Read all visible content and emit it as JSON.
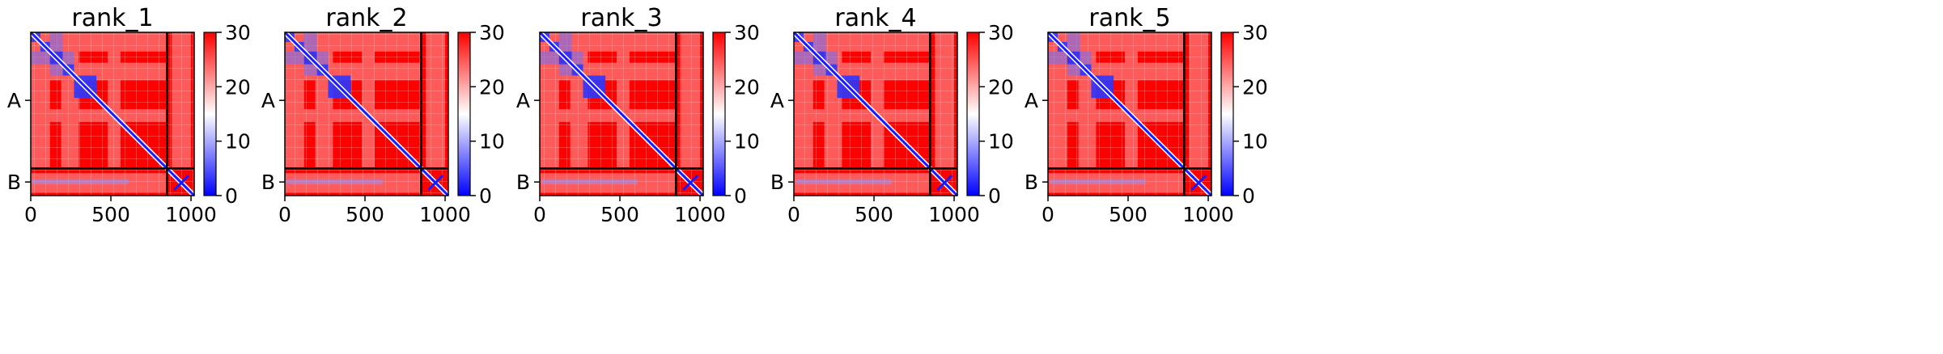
{
  "chart_data": {
    "type": "heatmap",
    "description_note": "",
    "colorbar": {
      "min": 0,
      "max": 30,
      "ticks": [
        0,
        10,
        20,
        30
      ],
      "colors": [
        "#0000ff",
        "#ffffff",
        "#ff0000"
      ]
    },
    "xlim": [
      0,
      1020
    ],
    "xticks": [
      0,
      500,
      1000
    ],
    "chain_boundary": 850,
    "chains": [
      {
        "label": "A",
        "center": 425
      },
      {
        "label": "B",
        "center": 935
      }
    ],
    "panels": [
      {
        "title": "rank_1"
      },
      {
        "title": "rank_2"
      },
      {
        "title": "rank_3"
      },
      {
        "title": "rank_4"
      },
      {
        "title": "rank_5"
      }
    ]
  }
}
